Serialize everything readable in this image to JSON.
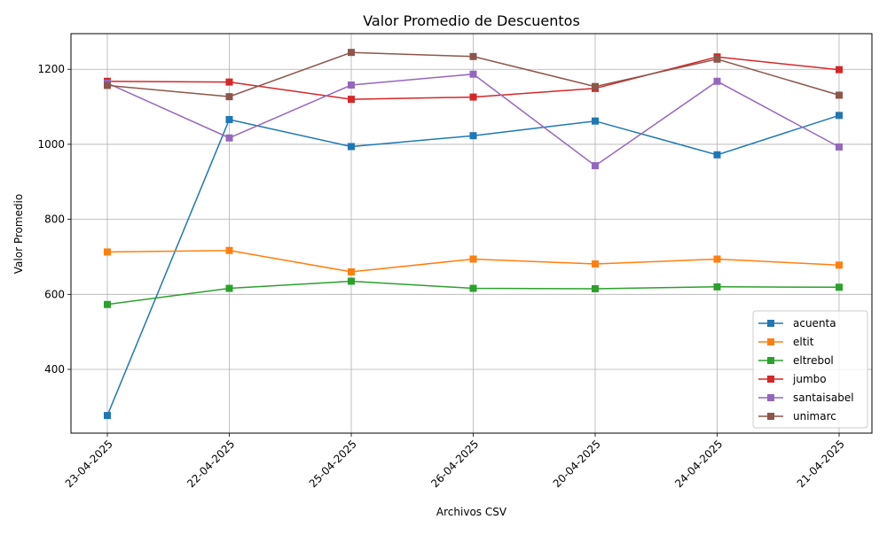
{
  "chart_data": {
    "type": "line",
    "title": "Valor Promedio de Descuentos",
    "xlabel": "Archivos CSV",
    "ylabel": "Valor Promedio",
    "categories": [
      "23-04-2025",
      "22-04-2025",
      "25-04-2025",
      "26-04-2025",
      "20-04-2025",
      "24-04-2025",
      "21-04-2025"
    ],
    "ylim": [
      230,
      1295
    ],
    "yticks": [
      400,
      600,
      800,
      1000,
      1200
    ],
    "grid": true,
    "legend_position": "lower right",
    "marker": "square",
    "series": [
      {
        "name": "acuenta",
        "color": "#1f77b4",
        "values": [
          277,
          1066,
          994,
          1023,
          1062,
          972,
          1077
        ]
      },
      {
        "name": "eltit",
        "color": "#ff7f0e",
        "values": [
          713,
          717,
          660,
          694,
          681,
          694,
          678
        ]
      },
      {
        "name": "eltrebol",
        "color": "#2ca02c",
        "values": [
          573,
          616,
          635,
          616,
          615,
          620,
          619
        ]
      },
      {
        "name": "jumbo",
        "color": "#d62728",
        "values": [
          1168,
          1166,
          1120,
          1126,
          1149,
          1233,
          1199
        ]
      },
      {
        "name": "santaisabel",
        "color": "#9467bd",
        "values": [
          1163,
          1017,
          1158,
          1187,
          943,
          1168,
          993
        ]
      },
      {
        "name": "unimarc",
        "color": "#8c564b",
        "values": [
          1157,
          1127,
          1245,
          1234,
          1154,
          1227,
          1131
        ]
      }
    ]
  }
}
